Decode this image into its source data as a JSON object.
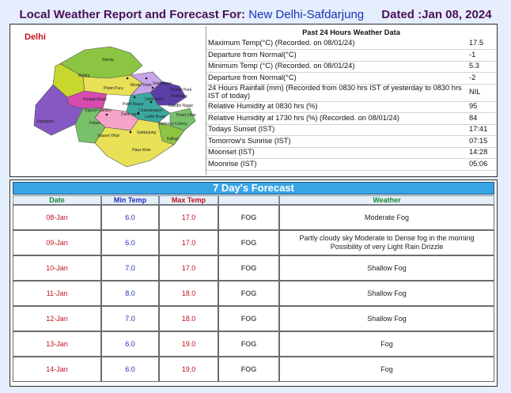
{
  "header": {
    "title_prefix": "Local Weather Report and Forecast For:",
    "location": "New Delhi-Safdarjung",
    "dated": "Dated :Jan 08, 2024"
  },
  "map": {
    "label": "Delhi",
    "districts": [
      "Narela",
      "Rohini",
      "Model Town",
      "Punjabi Bagh",
      "Pitam Pura",
      "Rajouri Garden",
      "Patel Nagar",
      "Delhi cantt",
      "Najafgarh",
      "Palam",
      "Vasant Vihar",
      "Safdarjung",
      "Hauz khas",
      "Kalkaji",
      "Defence Colony",
      "Preet Vihar",
      "Shahdara",
      "Seelampur",
      "Gandhi Nagar",
      "Shastri Park",
      "Chanakyapuri",
      "Delhi Gate",
      "Lodhi Road"
    ],
    "colors": [
      "#8cc542",
      "#c8d72d",
      "#8558c4",
      "#5b3ea8",
      "#d84bb1",
      "#e8e157",
      "#3aa9a0",
      "#f5a4c8",
      "#c8a5e8",
      "#78c06a"
    ]
  },
  "past24": {
    "heading": "Past 24 Hours Weather Data",
    "rows": [
      {
        "label": "Maximum Temp(°C) (Recorded. on 08/01/24)",
        "value": "17.5"
      },
      {
        "label": "Departure from Normal(°C)",
        "value": "-1"
      },
      {
        "label": "Minimum Temp (°C) (Recorded. on 08/01/24)",
        "value": "5.3"
      },
      {
        "label": "Departure from Normal(°C)",
        "value": "-2"
      },
      {
        "label": "24 Hours Rainfall (mm) (Recorded from 0830 hrs IST of yesterday to 0830 hrs IST of today)",
        "value": "NIL"
      },
      {
        "label": "Relative Humidity at 0830 hrs (%)",
        "value": "95"
      },
      {
        "label": "Relative Humidity at 1730 hrs (%) (Recorded. on 08/01/24)",
        "value": "84"
      },
      {
        "label": "Todays Sunset (IST)",
        "value": "17:41"
      },
      {
        "label": "Tomorrow's Sunrise (IST)",
        "value": "07:15"
      },
      {
        "label": "Moonset (IST)",
        "value": "14:28"
      },
      {
        "label": "Moonrise (IST)",
        "value": "05:06"
      }
    ]
  },
  "forecast": {
    "heading": "7 Day's Forecast",
    "columns": {
      "date": "Date",
      "min": "Min Temp",
      "max": "Max Temp",
      "weather": "Weather"
    },
    "rows": [
      {
        "date": "08-Jan",
        "min": "6.0",
        "max": "17.0",
        "icon": "FOG",
        "weather": "Moderate Fog"
      },
      {
        "date": "09-Jan",
        "min": "6.0",
        "max": "17.0",
        "icon": "FOG",
        "weather": "Partly cloudy sky Moderate to Dense fog in the morning Possibility of very Light Rain Drizzle"
      },
      {
        "date": "10-Jan",
        "min": "7.0",
        "max": "17.0",
        "icon": "FOG",
        "weather": "Shallow Fog"
      },
      {
        "date": "11-Jan",
        "min": "8.0",
        "max": "18.0",
        "icon": "FOG",
        "weather": "Shallow Fog"
      },
      {
        "date": "12-Jan",
        "min": "7.0",
        "max": "18.0",
        "icon": "FOG",
        "weather": "Shallow Fog"
      },
      {
        "date": "13-Jan",
        "min": "6.0",
        "max": "19.0",
        "icon": "FOG",
        "weather": "Fog"
      },
      {
        "date": "14-Jan",
        "min": "6.0",
        "max": "19.0",
        "icon": "FOG",
        "weather": "Fog"
      }
    ]
  }
}
